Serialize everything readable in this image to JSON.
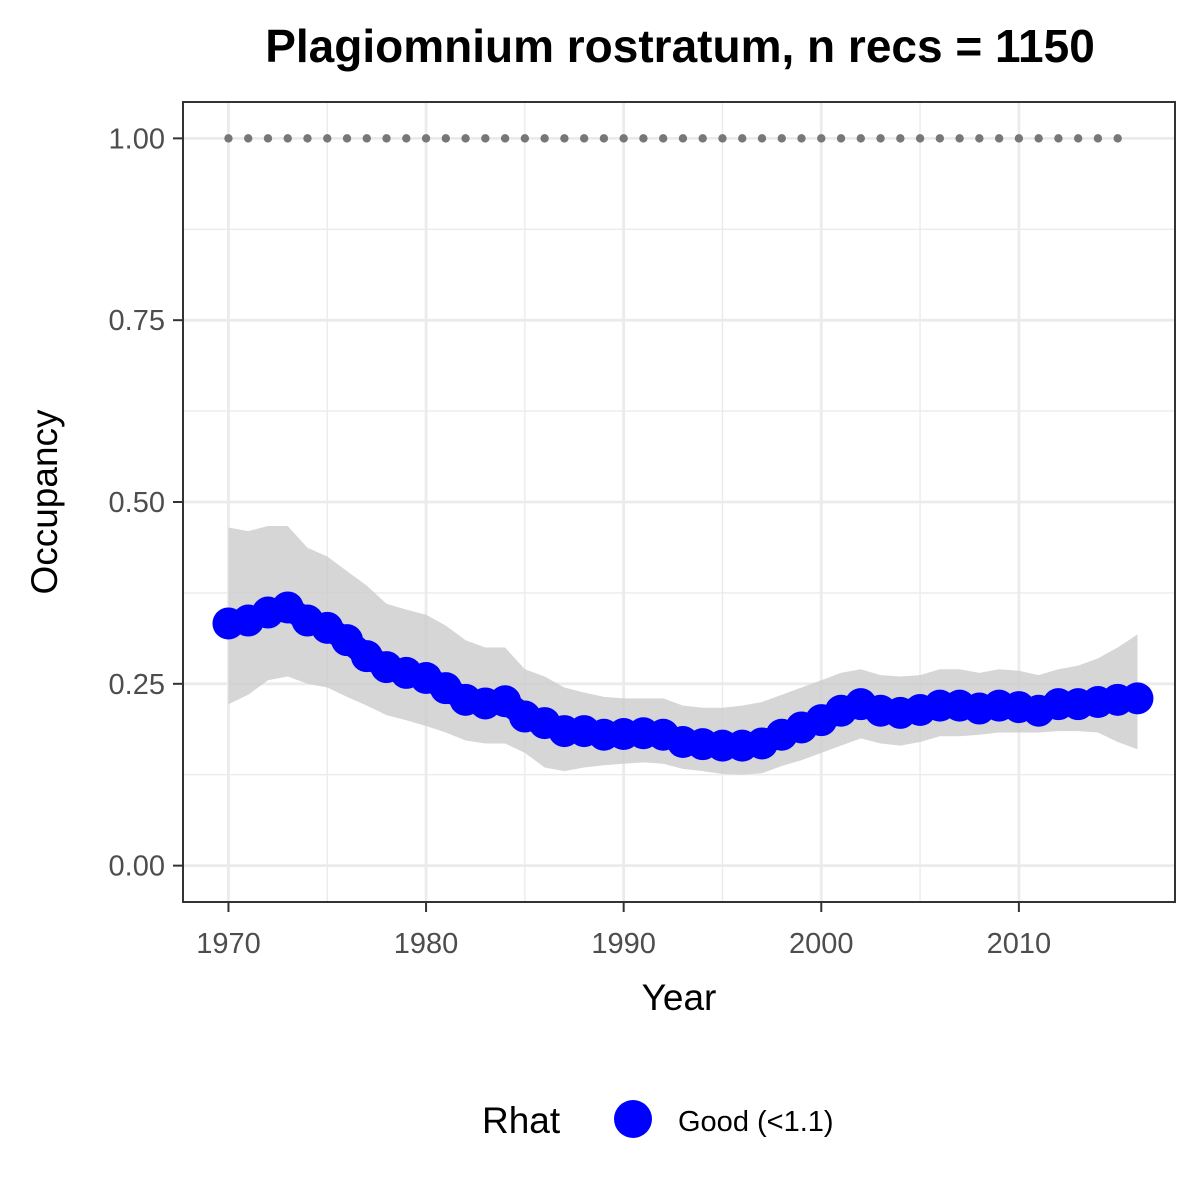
{
  "chart_data": {
    "type": "line",
    "title": "Plagiomnium rostratum, n recs = 1150",
    "xlabel": "Year",
    "ylabel": "Occupancy",
    "xlim": [
      1967.7,
      2017.9
    ],
    "ylim": [
      -0.05,
      1.05
    ],
    "x_ticks": [
      1970,
      1980,
      1990,
      2000,
      2010
    ],
    "x_tick_labels": [
      "1970",
      "1980",
      "1990",
      "2000",
      "2010"
    ],
    "y_ticks": [
      0.0,
      0.25,
      0.5,
      0.75,
      1.0
    ],
    "y_tick_labels": [
      "0.00",
      "0.25",
      "0.50",
      "0.75",
      "1.00"
    ],
    "grid": true,
    "legend": {
      "title": "Rhat",
      "position": "bottom",
      "entries": [
        {
          "label": "Good (<1.1)",
          "color": "#0000ff"
        }
      ]
    },
    "series": [
      {
        "name": "Good (<1.1)",
        "color": "#0000ff",
        "x": [
          1970,
          1971,
          1972,
          1973,
          1974,
          1975,
          1976,
          1977,
          1978,
          1979,
          1980,
          1981,
          1982,
          1983,
          1984,
          1985,
          1986,
          1987,
          1988,
          1989,
          1990,
          1991,
          1992,
          1993,
          1994,
          1995,
          1996,
          1997,
          1998,
          1999,
          2000,
          2001,
          2002,
          2003,
          2004,
          2005,
          2006,
          2007,
          2008,
          2009,
          2010,
          2011,
          2012,
          2013,
          2014,
          2015,
          2016
        ],
        "values": [
          0.333,
          0.337,
          0.348,
          0.355,
          0.337,
          0.327,
          0.31,
          0.288,
          0.273,
          0.265,
          0.258,
          0.244,
          0.228,
          0.223,
          0.226,
          0.205,
          0.196,
          0.185,
          0.185,
          0.18,
          0.181,
          0.182,
          0.18,
          0.17,
          0.167,
          0.165,
          0.165,
          0.168,
          0.18,
          0.19,
          0.2,
          0.213,
          0.222,
          0.213,
          0.21,
          0.214,
          0.22,
          0.22,
          0.216,
          0.22,
          0.218,
          0.213,
          0.222,
          0.222,
          0.225,
          0.228,
          0.23
        ],
        "lower": [
          0.222,
          0.235,
          0.255,
          0.26,
          0.25,
          0.245,
          0.232,
          0.22,
          0.207,
          0.2,
          0.192,
          0.183,
          0.172,
          0.168,
          0.168,
          0.155,
          0.135,
          0.13,
          0.135,
          0.138,
          0.14,
          0.142,
          0.14,
          0.133,
          0.13,
          0.126,
          0.125,
          0.127,
          0.137,
          0.145,
          0.155,
          0.165,
          0.175,
          0.168,
          0.165,
          0.17,
          0.178,
          0.178,
          0.18,
          0.183,
          0.183,
          0.183,
          0.185,
          0.185,
          0.183,
          0.17,
          0.16
        ],
        "upper": [
          0.465,
          0.46,
          0.467,
          0.467,
          0.437,
          0.425,
          0.405,
          0.385,
          0.36,
          0.352,
          0.345,
          0.33,
          0.31,
          0.3,
          0.3,
          0.27,
          0.26,
          0.245,
          0.238,
          0.232,
          0.23,
          0.23,
          0.23,
          0.22,
          0.217,
          0.217,
          0.22,
          0.225,
          0.235,
          0.245,
          0.255,
          0.265,
          0.27,
          0.262,
          0.26,
          0.262,
          0.27,
          0.27,
          0.265,
          0.27,
          0.268,
          0.262,
          0.27,
          0.275,
          0.285,
          0.3,
          0.318
        ]
      },
      {
        "name": "",
        "color": "#777777",
        "style": "dotted",
        "x": [
          1970,
          1971,
          1972,
          1973,
          1974,
          1975,
          1976,
          1977,
          1978,
          1979,
          1980,
          1981,
          1982,
          1983,
          1984,
          1985,
          1986,
          1987,
          1988,
          1989,
          1990,
          1991,
          1992,
          1993,
          1994,
          1995,
          1996,
          1997,
          1998,
          1999,
          2000,
          2001,
          2002,
          2003,
          2004,
          2005,
          2006,
          2007,
          2008,
          2009,
          2010,
          2011,
          2012,
          2013,
          2014,
          2015
        ],
        "values": [
          1,
          1,
          1,
          1,
          1,
          1,
          1,
          1,
          1,
          1,
          1,
          1,
          1,
          1,
          1,
          1,
          1,
          1,
          1,
          1,
          1,
          1,
          1,
          1,
          1,
          1,
          1,
          1,
          1,
          1,
          1,
          1,
          1,
          1,
          1,
          1,
          1,
          1,
          1,
          1,
          1,
          1,
          1,
          1,
          1,
          1
        ]
      }
    ]
  }
}
